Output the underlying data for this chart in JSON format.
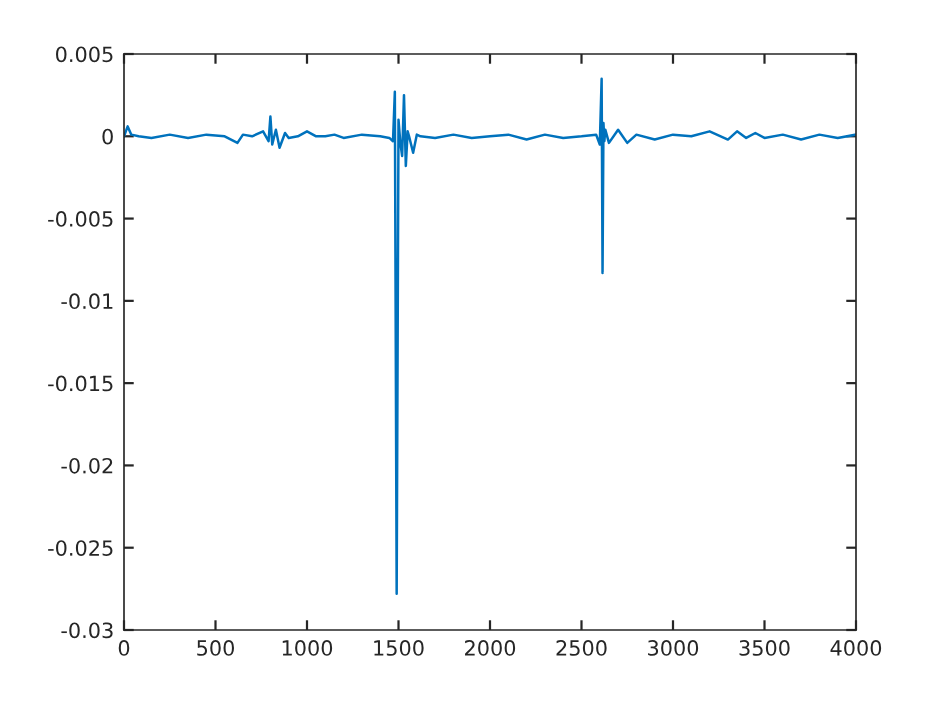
{
  "chart_data": {
    "type": "line",
    "x": [
      0,
      20,
      40,
      80,
      150,
      250,
      350,
      450,
      550,
      620,
      650,
      700,
      760,
      790,
      800,
      810,
      830,
      850,
      880,
      900,
      950,
      1000,
      1050,
      1100,
      1150,
      1200,
      1300,
      1400,
      1450,
      1470,
      1480,
      1490,
      1500,
      1510,
      1520,
      1530,
      1540,
      1550,
      1560,
      1580,
      1600,
      1620,
      1700,
      1800,
      1900,
      2000,
      2100,
      2200,
      2300,
      2400,
      2500,
      2580,
      2600,
      2610,
      2615,
      2620,
      2625,
      2630,
      2650,
      2700,
      2750,
      2800,
      2900,
      3000,
      3100,
      3200,
      3300,
      3350,
      3400,
      3450,
      3500,
      3600,
      3700,
      3800,
      3900,
      4000
    ],
    "series": [
      {
        "color": "#0072bd",
        "values": [
          0.0,
          0.0006,
          0.0001,
          0.0,
          -0.0001,
          0.0001,
          -0.0001,
          0.0001,
          0.0,
          -0.0004,
          0.0001,
          0.0,
          0.0003,
          -0.0003,
          0.0012,
          -0.0005,
          0.0004,
          -0.0007,
          0.0002,
          -0.0001,
          0.0,
          0.0003,
          0.0,
          0.0,
          0.0001,
          -0.0001,
          0.0001,
          0.0,
          -0.0001,
          -0.0003,
          0.0027,
          -0.0278,
          0.001,
          -0.0004,
          -0.0012,
          0.0025,
          -0.0018,
          0.0003,
          -0.0001,
          -0.001,
          0.0001,
          0.0,
          -0.0001,
          0.0001,
          -0.0001,
          0.0,
          0.0001,
          -0.0002,
          0.0001,
          -0.0001,
          0.0,
          0.0001,
          -0.0005,
          0.0035,
          -0.0083,
          0.0008,
          -0.0003,
          0.0004,
          -0.0004,
          0.0004,
          -0.0004,
          0.0001,
          -0.0002,
          0.0001,
          0.0,
          0.0003,
          -0.0002,
          0.0003,
          -0.0001,
          0.0002,
          -0.0001,
          0.0001,
          -0.0002,
          0.0001,
          -0.0001,
          0.0001
        ]
      }
    ],
    "xlim": [
      0,
      4000
    ],
    "ylim": [
      -0.03,
      0.005
    ],
    "xticks": [
      0,
      500,
      1000,
      1500,
      2000,
      2500,
      3000,
      3500,
      4000
    ],
    "yticks": [
      {
        "value": -0.03,
        "label": "-0.03"
      },
      {
        "value": -0.025,
        "label": "-0.025"
      },
      {
        "value": -0.02,
        "label": "-0.02"
      },
      {
        "value": -0.015,
        "label": "-0.015"
      },
      {
        "value": -0.01,
        "label": "-0.01"
      },
      {
        "value": -0.005,
        "label": "-0.005"
      },
      0,
      0.005
    ],
    "grid": false,
    "legend": false
  }
}
